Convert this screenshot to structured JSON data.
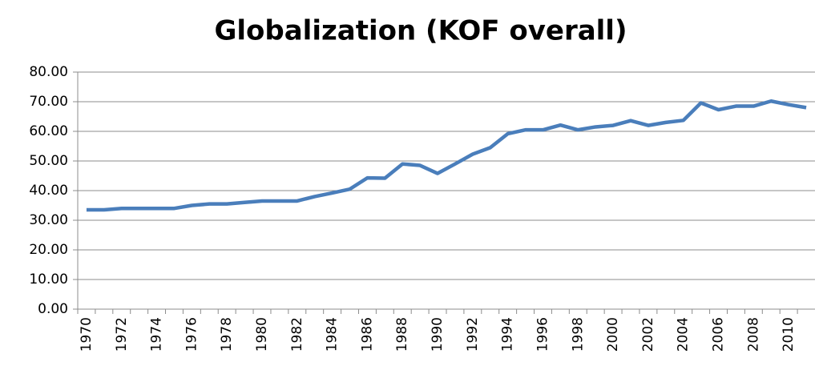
{
  "chart_data": {
    "type": "line",
    "title": "Globalization (KOF overall)",
    "categories": [
      "1970",
      null,
      "1972",
      null,
      "1974",
      null,
      "1976",
      null,
      "1978",
      null,
      "1980",
      null,
      "1982",
      null,
      "1984",
      null,
      "1986",
      null,
      "1988",
      null,
      "1990",
      null,
      "1992",
      null,
      "1994",
      null,
      "1996",
      null,
      "1998",
      null,
      "2000",
      null,
      "2002",
      null,
      "2004",
      null,
      "2006",
      null,
      "2008",
      null,
      "2010",
      null
    ],
    "series": [
      {
        "name": "KOF overall",
        "color": "#4a7ebb",
        "values": [
          33.5,
          33.5,
          34,
          34,
          34,
          34,
          35,
          35.5,
          35.5,
          36,
          36.5,
          36.5,
          36.5,
          38,
          39.2,
          40.5,
          44.3,
          44.2,
          49,
          48.5,
          45.8,
          49,
          52.3,
          54.5,
          59.2,
          60.5,
          60.5,
          62.1,
          60.5,
          61.5,
          62,
          63.6,
          62,
          63,
          63.7,
          69.6,
          67.3,
          68.5,
          68.5,
          70.2,
          69,
          68
        ]
      }
    ],
    "ylim": [
      0,
      80
    ],
    "yticks": [
      {
        "value": 0,
        "label": "0.00"
      },
      {
        "value": 10,
        "label": "10.00"
      },
      {
        "value": 20,
        "label": "20.00"
      },
      {
        "value": 30,
        "label": "30.00"
      },
      {
        "value": 40,
        "label": "40.00"
      },
      {
        "value": 50,
        "label": "50.00"
      },
      {
        "value": 60,
        "label": "60.00"
      },
      {
        "value": 70,
        "label": "70.00"
      },
      {
        "value": 80,
        "label": "80.00"
      }
    ],
    "grid": true
  }
}
